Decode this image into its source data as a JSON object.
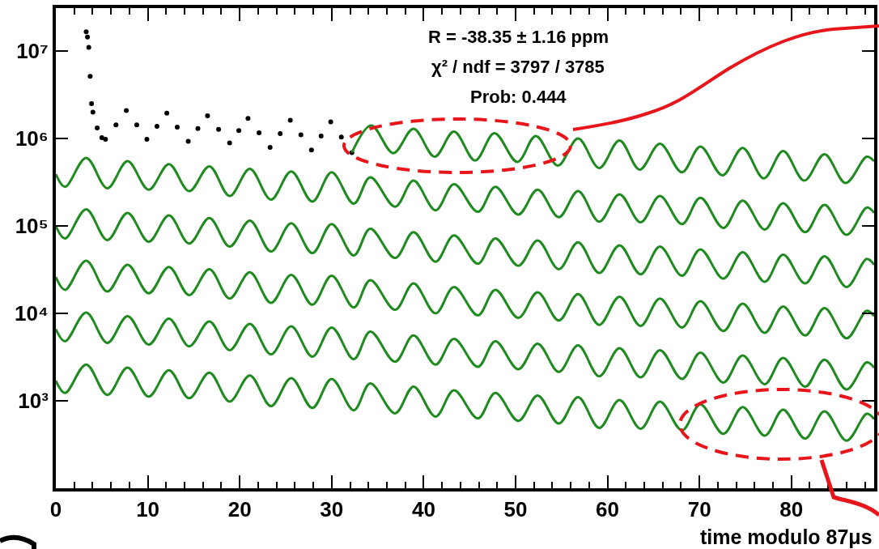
{
  "chart_data": {
    "type": "line",
    "annotations": [
      "R = -38.35 ± 1.16 ppm",
      "χ² / ndf = 3797 / 3785",
      "Prob: 0.444"
    ],
    "xlabel": "time modulo 87μs",
    "xlim": [
      0,
      89
    ],
    "xticks": [
      0,
      10,
      20,
      30,
      40,
      50,
      60,
      70,
      80
    ],
    "ylim": [
      100,
      31000000
    ],
    "yticks": [
      {
        "value": 1000,
        "label": "10³"
      },
      {
        "value": 10000,
        "label": "10⁴"
      },
      {
        "value": 100000,
        "label": "10⁵"
      },
      {
        "value": 1000000,
        "label": "10⁶"
      },
      {
        "value": 10000000,
        "label": "10⁷"
      }
    ],
    "log": "y",
    "grid": false,
    "line_style": "solid",
    "x": [
      0,
      1.0,
      3.3,
      5.6,
      7.8,
      10.1,
      12.3,
      14.5,
      16.7,
      18.9,
      21.1,
      23.4,
      25.6,
      27.9,
      30.0,
      32.4,
      34.2,
      36.9,
      38.9,
      41.3,
      43.3,
      45.9,
      47.8,
      50.3,
      52.4,
      54.7,
      56.8,
      59.1,
      61.3,
      63.6,
      65.7,
      68.1,
      70.1,
      72.6,
      74.7,
      77.1,
      79.1,
      81.5,
      83.6,
      86.0,
      88.2,
      89
    ],
    "series": [
      {
        "type": "scatter",
        "marker": "circle",
        "color": "#000000",
        "x": [
          3.3,
          3.44,
          3.58,
          3.73,
          3.88,
          4.03,
          4.5,
          5.0,
          5.4,
          6.54,
          7.67,
          8.8,
          9.9,
          11.0,
          12.07,
          13.2,
          14.4,
          15.45,
          16.5,
          17.7,
          18.9,
          19.9,
          20.9,
          22.1,
          23.3,
          24.4,
          25.5,
          26.65,
          27.8,
          28.85,
          29.9,
          31.05,
          32.2
        ],
        "values": [
          16600000,
          14500000,
          11000000,
          5130000,
          2510000,
          2000000,
          1320000,
          1020000,
          980000,
          1430000,
          2090000,
          1430000,
          980000,
          1380000,
          1950000,
          1350000,
          930000,
          1300000,
          1820000,
          1270000,
          890000,
          1230000,
          1700000,
          1160000,
          790000,
          1140000,
          1620000,
          1100000,
          740000,
          1070000,
          1550000,
          1040000,
          690000
        ]
      },
      {
        "type": "line",
        "marker": "none",
        "color": "#1f8a1f",
        "x": [
          32.2,
          34.3,
          36.7,
          38.9,
          41.2,
          43.3,
          45.6,
          47.7,
          50.2,
          52.2,
          54.6,
          56.8,
          59.1,
          61.3,
          63.5,
          65.7,
          68.1,
          70.1,
          72.5,
          74.7,
          77.0,
          79.1,
          81.4,
          83.6,
          85.9,
          88.2,
          89
        ],
        "values": [
          690000,
          1410000,
          680000,
          1290000,
          620000,
          1200000,
          560000,
          1150000,
          540000,
          1070000,
          490000,
          1000000,
          460000,
          950000,
          440000,
          870000,
          410000,
          810000,
          380000,
          780000,
          350000,
          720000,
          330000,
          660000,
          310000,
          620000,
          550000
        ]
      },
      {
        "type": "line",
        "marker": "none",
        "color": "#1f8a1f",
        "values": [
          390000,
          280000,
          600000,
          270000,
          550000,
          260000,
          510000,
          250000,
          480000,
          220000,
          450000,
          200000,
          420000,
          190000,
          410000,
          180000,
          360000,
          166000,
          330000,
          151000,
          300000,
          145000,
          280000,
          135000,
          260000,
          126000,
          250000,
          112000,
          230000,
          110000,
          220000,
          105000,
          210000,
          95000,
          195000,
          91000,
          182000,
          85000,
          174000,
          79000,
          162000,
          141000
        ]
      },
      {
        "type": "line",
        "marker": "none",
        "color": "#1f8a1f",
        "values": [
          100000,
          72000,
          155000,
          69000,
          141000,
          66000,
          132000,
          63000,
          123000,
          58000,
          115000,
          51000,
          107000,
          49000,
          105000,
          46000,
          93000,
          43000,
          85000,
          39000,
          78000,
          37000,
          72000,
          35000,
          68000,
          32000,
          65000,
          29000,
          60000,
          28000,
          58000,
          27000,
          54000,
          25000,
          50000,
          23000,
          47000,
          22000,
          45000,
          20000,
          42000,
          36000
        ]
      },
      {
        "type": "line",
        "marker": "none",
        "color": "#1f8a1f",
        "values": [
          26000,
          18600,
          40000,
          17800,
          36000,
          17000,
          34000,
          16200,
          32000,
          14800,
          29500,
          13200,
          27500,
          12600,
          27000,
          11700,
          24000,
          11000,
          22000,
          10000,
          20000,
          9500,
          18600,
          8900,
          17400,
          8300,
          16600,
          7400,
          15500,
          7200,
          14800,
          6900,
          13800,
          6300,
          12900,
          6000,
          12000,
          5600,
          11500,
          5200,
          10700,
          9300
        ]
      },
      {
        "type": "line",
        "marker": "none",
        "color": "#1f8a1f",
        "values": [
          6600,
          4800,
          10200,
          4600,
          9300,
          4400,
          8700,
          4200,
          8100,
          3800,
          7600,
          3400,
          7100,
          3200,
          6900,
          3000,
          6200,
          2800,
          5600,
          2600,
          5100,
          2450,
          4800,
          2300,
          4500,
          2140,
          4300,
          1910,
          4000,
          1860,
          3800,
          1780,
          3550,
          1620,
          3300,
          1550,
          3100,
          1450,
          2950,
          1350,
          2750,
          2400
        ]
      },
      {
        "type": "line",
        "marker": "none",
        "color": "#1f8a1f",
        "values": [
          1700,
          1230,
          2600,
          1170,
          2400,
          1120,
          2240,
          1070,
          2100,
          980,
          1950,
          870,
          1820,
          830,
          1780,
          780,
          1580,
          720,
          1450,
          660,
          1320,
          630,
          1230,
          590,
          1150,
          550,
          1100,
          490,
          1020,
          480,
          980,
          460,
          910,
          420,
          850,
          400,
          790,
          370,
          760,
          350,
          710,
          620
        ]
      }
    ]
  }
}
